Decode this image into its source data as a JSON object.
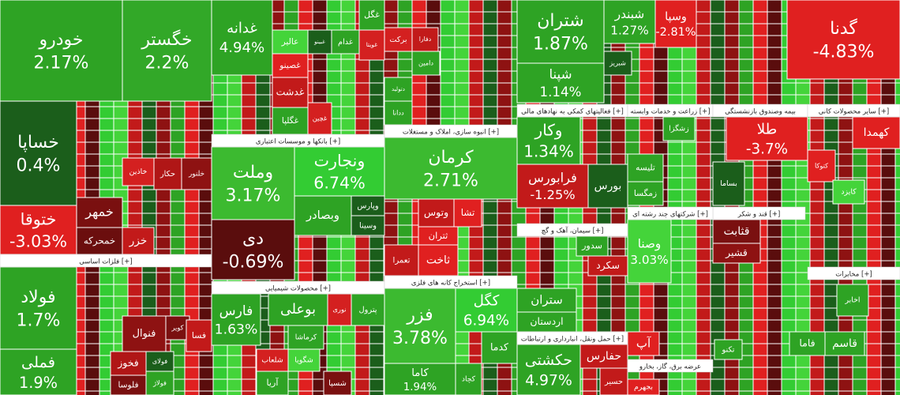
{
  "chart_data": {
    "type": "treemap",
    "tiles": [
      {
        "name": "خودرو",
        "value": 2.17,
        "value_label": "2.17%",
        "color": "#2ea324"
      },
      {
        "name": "خگستر",
        "value": 2.2,
        "value_label": "2.2%",
        "color": "#32a828"
      },
      {
        "name": "خساپا",
        "value": 0.4,
        "value_label": "0.4%",
        "color": "#1b5e1b"
      },
      {
        "name": "ختوقا",
        "value": -3.03,
        "value_label": "-3.03%",
        "color": "#e02020"
      },
      {
        "name": "خمهر",
        "color": "#7a1010"
      },
      {
        "name": "خمحرکه",
        "color": "#6b0e0e"
      },
      {
        "name": "خزر",
        "color": "#c21a1a"
      },
      {
        "name": "خاذین",
        "color": "#d42020"
      },
      {
        "name": "حکار",
        "color": "#b01616"
      },
      {
        "name": "خلنور",
        "color": "#8e1212"
      },
      {
        "name": "فولاد",
        "value": 1.7,
        "value_label": "1.7%",
        "color": "#2ea324"
      },
      {
        "name": "فملی",
        "value": 1.9,
        "value_label": "1.9%",
        "color": "#2ea324"
      },
      {
        "name": "فنوال",
        "color": "#8e1212"
      },
      {
        "name": "کویر",
        "color": "#7a1010"
      },
      {
        "name": "فخوز",
        "color": "#b01616"
      },
      {
        "name": "فسا",
        "color": "#c21a1a"
      },
      {
        "name": "فولای",
        "color": "#1b5e1b"
      },
      {
        "name": "فولاژ",
        "color": "#2ea324"
      },
      {
        "name": "فلوسا",
        "color": "#7a1010"
      },
      {
        "name": "غدانه",
        "value": 4.94,
        "value_label": "4.94%",
        "color": "#2ea324"
      },
      {
        "name": "غگل",
        "color": "#2ea324"
      },
      {
        "name": "غویتا",
        "color": "#d42020"
      },
      {
        "name": "عالیر",
        "color": "#44d43a"
      },
      {
        "name": "غبینو",
        "color": "#1b5e1b"
      },
      {
        "name": "غدام",
        "color": "#2ea324"
      },
      {
        "name": "غصینو",
        "color": "#e02020"
      },
      {
        "name": "غدشت",
        "color": "#c21a1a"
      },
      {
        "name": "غگلپا",
        "color": "#2ea324"
      },
      {
        "name": "غچین",
        "color": "#d42020"
      },
      {
        "name": "وملت",
        "value": 3.17,
        "value_label": "3.17%",
        "color": "#3cba30"
      },
      {
        "name": "ونجارت",
        "value": 6.74,
        "value_label": "6.74%",
        "color": "#33cc33"
      },
      {
        "name": "وپارس",
        "color": "#1b5e1b"
      },
      {
        "name": "وبصادر",
        "color": "#2ea324"
      },
      {
        "name": "وسینا",
        "color": "#1b5e1b"
      },
      {
        "name": "دی",
        "value": -0.69,
        "value_label": "-0.69%",
        "color": "#5a0d0d"
      },
      {
        "name": "پترول",
        "color": "#2ea324"
      },
      {
        "name": "نوری",
        "color": "#d42020"
      },
      {
        "name": "بوعلی",
        "color": "#2ea324"
      },
      {
        "name": "کرماشا",
        "color": "#2ea324"
      },
      {
        "name": "شگویا",
        "color": "#44d43a"
      },
      {
        "name": "شلعاب",
        "color": "#d42020"
      },
      {
        "name": "آریا",
        "color": "#2ea324"
      },
      {
        "name": "شسپا",
        "color": "#7a1010"
      },
      {
        "name": "فارس",
        "value": 1.63,
        "value_label": "1.63%",
        "color": "#2ea324"
      },
      {
        "name": "برکت",
        "color": "#d42020"
      },
      {
        "name": "دفارا",
        "color": "#c21a1a"
      },
      {
        "name": "دامین",
        "color": "#2ea324"
      },
      {
        "name": "دتولید",
        "color": "#2ea324"
      },
      {
        "name": "ددانا",
        "color": "#2ea324"
      },
      {
        "name": "کرمان",
        "value": 2.71,
        "value_label": "2.71%",
        "color": "#3cba30"
      },
      {
        "name": "وتوس",
        "color": "#c21a1a"
      },
      {
        "name": "تشا",
        "color": "#e02020"
      },
      {
        "name": "ثاخت",
        "color": "#e02020"
      },
      {
        "name": "تعمرا",
        "color": "#c21a1a"
      },
      {
        "name": "ثتران",
        "color": "#e02020"
      },
      {
        "name": "فزر",
        "value": 3.78,
        "value_label": "3.78%",
        "color": "#3cba30"
      },
      {
        "name": "کگل",
        "value": 6.94,
        "value_label": "6.94%",
        "color": "#33cc33"
      },
      {
        "name": "کدما",
        "color": "#2ea324"
      },
      {
        "name": "کاما",
        "value": 1.94,
        "value_label": "1.94%",
        "color": "#2ea324"
      },
      {
        "name": "کچاد",
        "color": "#2ea324"
      },
      {
        "name": "شتران",
        "value": 1.87,
        "value_label": "1.87%",
        "color": "#2ea324"
      },
      {
        "name": "شپنا",
        "value": 1.14,
        "value_label": "1.14%",
        "color": "#2ea324"
      },
      {
        "name": "شبندر",
        "value": 1.27,
        "value_label": "1.27%",
        "color": "#2ea324"
      },
      {
        "name": "وسپا",
        "value": -2.81,
        "value_label": "-2.81%",
        "color": "#e02020"
      },
      {
        "name": "گدنا",
        "value": -4.83,
        "value_label": "-4.83%",
        "color": "#e02020"
      },
      {
        "name": "شبریز",
        "color": "#1b5e1b"
      },
      {
        "name": "وکار",
        "value": 1.34,
        "value_label": "1.34%",
        "color": "#2ea324"
      },
      {
        "name": "فرابورس",
        "value": -1.25,
        "value_label": "-1.25%",
        "color": "#c21a1a"
      },
      {
        "name": "بورس",
        "color": "#1b5e1b"
      },
      {
        "name": "زشگزا",
        "color": "#2ea324"
      },
      {
        "name": "تلیسه",
        "color": "#2ea324"
      },
      {
        "name": "زمگسا",
        "color": "#2ea324"
      },
      {
        "name": "طلا",
        "value": -3.7,
        "value_label": "-3.7%",
        "color": "#e02020"
      },
      {
        "name": "بساما",
        "color": "#1b5e1b"
      },
      {
        "name": "کهمدا",
        "color": "#e02020"
      },
      {
        "name": "کتوکا",
        "color": "#e02020"
      },
      {
        "name": "کایزد",
        "color": "#44d43a"
      },
      {
        "name": "سدور",
        "color": "#2ea324"
      },
      {
        "name": "سکرد",
        "color": "#c21a1a"
      },
      {
        "name": "ستران",
        "color": "#2ea324"
      },
      {
        "name": "اردستان",
        "color": "#2ea324"
      },
      {
        "name": "حکشتی",
        "value": 4.97,
        "value_label": "4.97%",
        "color": "#2ea324"
      },
      {
        "name": "حفارس",
        "color": "#c21a1a"
      },
      {
        "name": "حسیر",
        "color": "#c21a1a"
      },
      {
        "name": "قثابت",
        "color": "#7a1010"
      },
      {
        "name": "قشیر",
        "color": "#8e1212"
      },
      {
        "name": "وصنا",
        "value": 3.03,
        "value_label": "3.03%",
        "color": "#44d43a"
      },
      {
        "name": "اخابر",
        "color": "#2ea324"
      },
      {
        "name": "فاما",
        "color": "#2ea324"
      },
      {
        "name": "قاسم",
        "color": "#2ea324"
      },
      {
        "name": "تکنو",
        "color": "#2ea324"
      },
      {
        "name": "آپ",
        "color": "#e02020"
      },
      {
        "name": "بجهرم",
        "color": "#e02020"
      }
    ],
    "sectors": [
      "بانکها و موسسات اعتباری [+]",
      "محصولات شیمیایی [+]",
      "انبوه سازی، املاک و مستغلات [+]",
      "استخراج کانه های فلزی [+]",
      "فعالیتهای کمکی به نهادهای مالی [+]",
      "زراعت و خدمات وابسته [+]",
      "بیمه وصندوق بازنشستگی",
      "سایر محصولات کانی [+]",
      "سیمان، آهک و گچ [+]",
      "حمل ونقل، انبارداری و ارتباطات [+]",
      "قند و شکر [+]",
      "عرضه برق، گاز، بخارو",
      "شرکتهای چند رشته ای [+]",
      "مخابرات [+]",
      "فلزات اساسی [+]"
    ]
  }
}
